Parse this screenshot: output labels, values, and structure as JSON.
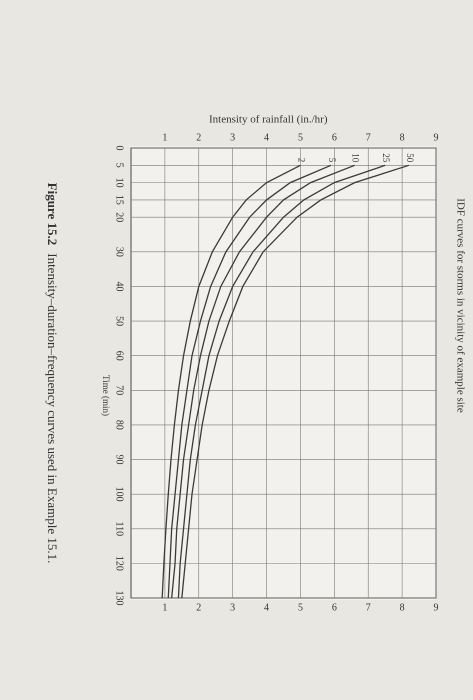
{
  "chart_data": {
    "type": "line",
    "title": "IDF curves for storms in vicinity of example site",
    "xlabel": "Time (min)",
    "ylabel": "Intensity of rainfall (in./hr)",
    "x": [
      5,
      10,
      15,
      20,
      30,
      40,
      50,
      60,
      70,
      80,
      90,
      100,
      110,
      120,
      130
    ],
    "series": [
      {
        "name": "50",
        "color": "#3a3a3a",
        "values": [
          8.2,
          6.6,
          5.6,
          4.9,
          3.9,
          3.3,
          2.9,
          2.55,
          2.3,
          2.1,
          1.95,
          1.8,
          1.7,
          1.6,
          1.5
        ]
      },
      {
        "name": "25",
        "color": "#3a3a3a",
        "values": [
          7.5,
          6.0,
          5.1,
          4.5,
          3.6,
          3.0,
          2.6,
          2.3,
          2.1,
          1.9,
          1.75,
          1.65,
          1.55,
          1.45,
          1.4
        ]
      },
      {
        "name": "10",
        "color": "#3a3a3a",
        "values": [
          6.6,
          5.3,
          4.5,
          4.0,
          3.2,
          2.65,
          2.3,
          2.05,
          1.85,
          1.7,
          1.55,
          1.45,
          1.35,
          1.3,
          1.2
        ]
      },
      {
        "name": "5",
        "color": "#3a3a3a",
        "values": [
          5.9,
          4.7,
          4.0,
          3.5,
          2.8,
          2.35,
          2.05,
          1.8,
          1.65,
          1.5,
          1.4,
          1.3,
          1.2,
          1.15,
          1.1
        ]
      },
      {
        "name": "2",
        "color": "#3a3a3a",
        "values": [
          5.0,
          4.0,
          3.4,
          3.0,
          2.4,
          2.0,
          1.75,
          1.55,
          1.4,
          1.28,
          1.18,
          1.1,
          1.03,
          0.97,
          0.92
        ]
      }
    ],
    "xlim": [
      0,
      130
    ],
    "xticks": [
      0,
      5,
      10,
      15,
      20,
      30,
      40,
      50,
      60,
      70,
      80,
      90,
      100,
      110,
      120,
      130
    ],
    "ylim": [
      0,
      9
    ],
    "yticks": [
      1,
      2,
      3,
      4,
      5,
      6,
      7,
      8,
      9
    ],
    "grid": true
  },
  "caption": {
    "label": "Figure 15.2",
    "text": "Intensity–duration–frequency curves used in Example 15.1."
  }
}
